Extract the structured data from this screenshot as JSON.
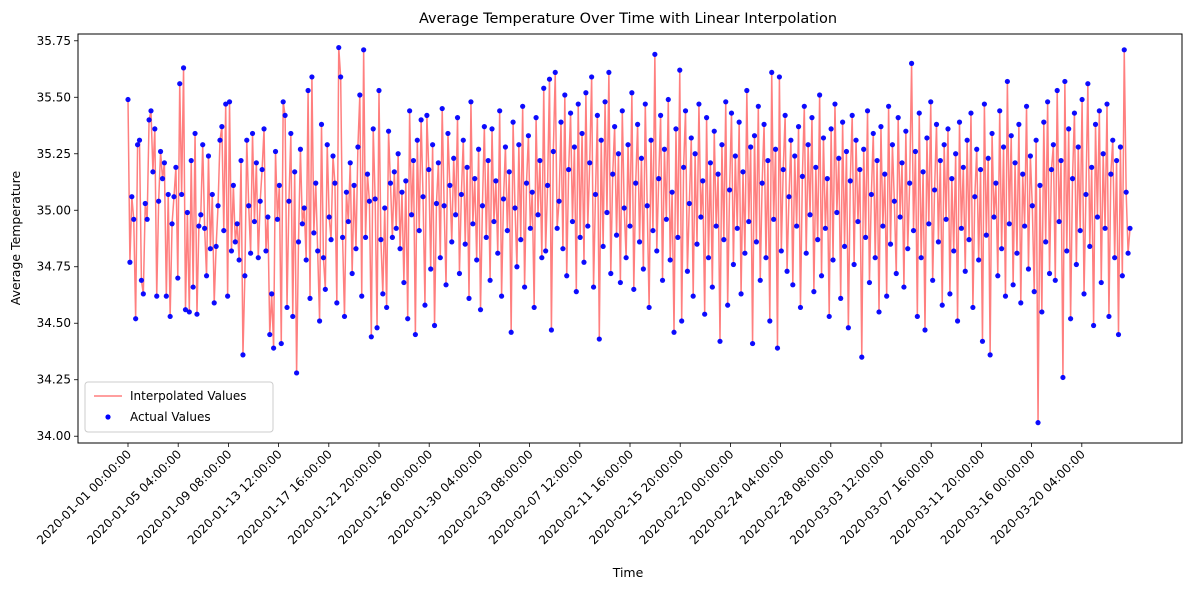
{
  "chart_data": {
    "type": "line",
    "title": "Average Temperature Over Time with Linear Interpolation",
    "xlabel": "Time",
    "ylabel": "Average Temperature",
    "x_range": [
      "2020-01-01 00:00:00",
      "2020-03-24 04:00:00"
    ],
    "sample_interval_hours": 2,
    "ylim": [
      33.97,
      35.78
    ],
    "y_ticks": [
      "34.00",
      "34.25",
      "34.50",
      "34.75",
      "35.00",
      "35.25",
      "35.50",
      "35.75"
    ],
    "x_ticks": [
      "2020-01-01 00:00:00",
      "2020-01-05 04:00:00",
      "2020-01-09 08:00:00",
      "2020-01-13 12:00:00",
      "2020-01-17 16:00:00",
      "2020-01-21 20:00:00",
      "2020-01-26 00:00:00",
      "2020-01-30 04:00:00",
      "2020-02-03 08:00:00",
      "2020-02-07 12:00:00",
      "2020-02-11 16:00:00",
      "2020-02-15 20:00:00",
      "2020-02-20 00:00:00",
      "2020-02-24 04:00:00",
      "2020-02-28 08:00:00",
      "2020-03-03 12:00:00",
      "2020-03-07 16:00:00",
      "2020-03-11 20:00:00",
      "2020-03-16 00:00:00",
      "2020-03-20 04:00:00"
    ],
    "grid": false,
    "legend_position": "lower-left",
    "series": [
      {
        "name": "Interpolated Values",
        "kind": "line",
        "color": "#ff7f7f"
      },
      {
        "name": "Actual Values",
        "kind": "scatter",
        "color": "#0000ff"
      }
    ],
    "values": [
      35.49,
      34.77,
      35.06,
      34.96,
      34.52,
      35.29,
      35.31,
      34.69,
      34.63,
      35.03,
      34.96,
      35.4,
      35.44,
      35.17,
      35.36,
      34.62,
      35.04,
      35.26,
      35.14,
      35.21,
      34.62,
      35.07,
      34.53,
      34.94,
      35.06,
      35.19,
      34.7,
      35.56,
      35.07,
      35.63,
      34.56,
      34.99,
      34.55,
      35.22,
      34.66,
      35.34,
      34.54,
      34.93,
      34.98,
      35.29,
      34.92,
      34.71,
      35.24,
      34.83,
      35.07,
      34.59,
      34.84,
      35.02,
      35.31,
      35.37,
      34.91,
      35.47,
      34.62,
      35.48,
      34.82,
      35.11,
      34.86,
      34.94,
      34.78,
      35.22,
      34.36,
      34.71,
      35.31,
      35.02,
      34.81,
      35.34,
      34.95,
      35.21,
      34.79,
      35.04,
      35.18,
      35.36,
      34.82,
      34.97,
      34.45,
      34.63,
      34.39,
      35.26,
      34.96,
      35.11,
      34.41,
      35.48,
      35.42,
      34.57,
      35.04,
      35.34,
      34.53,
      35.17,
      34.28,
      34.86,
      35.27,
      34.94,
      35.01,
      34.78,
      35.53,
      34.61,
      35.59,
      34.9,
      35.12,
      34.82,
      34.51,
      35.38,
      34.79,
      34.65,
      35.29,
      34.97,
      34.87,
      35.24,
      35.12,
      34.59,
      35.72,
      35.59,
      34.88,
      34.53,
      35.08,
      34.95,
      35.21,
      34.72,
      35.11,
      34.83,
      35.28,
      35.51,
      34.62,
      35.71,
      34.88,
      35.16,
      35.04,
      34.44,
      35.36,
      35.05,
      34.48,
      35.53,
      34.87,
      34.63,
      35.01,
      34.57,
      35.35,
      35.12,
      34.88,
      35.17,
      34.92,
      35.25,
      34.83,
      35.08,
      34.68,
      35.13,
      34.52,
      35.44,
      34.98,
      35.22,
      34.45,
      35.31,
      34.91,
      35.4,
      35.06,
      34.58,
      35.42,
      35.18,
      34.74,
      35.29,
      34.49,
      35.03,
      35.21,
      34.79,
      35.45,
      35.02,
      34.67,
      35.34,
      35.11,
      34.86,
      35.23,
      34.98,
      35.41,
      34.72,
      35.07,
      35.31,
      34.85,
      35.19,
      34.61,
      35.48,
      34.94,
      35.14,
      34.78,
      35.27,
      34.56,
      35.02,
      35.37,
      34.88,
      35.22,
      34.69,
      35.36,
      34.95,
      35.13,
      34.81,
      35.44,
      34.62,
      35.05,
      35.28,
      34.91,
      35.17,
      34.46,
      35.39,
      35.01,
      34.75,
      35.29,
      34.87,
      35.46,
      34.66,
      35.12,
      35.33,
      34.92,
      35.08,
      34.57,
      35.41,
      34.98,
      35.22,
      34.79,
      35.54,
      34.82,
      35.11,
      35.58,
      34.47,
      35.26,
      35.61,
      34.92,
      35.04,
      35.39,
      34.83,
      35.51,
      34.71,
      35.18,
      35.43,
      34.95,
      35.28,
      34.64,
      35.47,
      34.88,
      35.34,
      34.77,
      35.52,
      34.93,
      35.21,
      35.59,
      34.66,
      35.07,
      35.42,
      34.43,
      35.31,
      34.84,
      35.48,
      34.99,
      35.61,
      34.72,
      35.16,
      35.37,
      34.89,
      35.25,
      34.68,
      35.44,
      35.01,
      34.79,
      35.29,
      34.93,
      35.52,
      34.65,
      35.12,
      35.38,
      34.86,
      35.23,
      34.74,
      35.47,
      35.02,
      34.57,
      35.31,
      34.91,
      35.69,
      34.82,
      35.14,
      35.42,
      34.69,
      35.27,
      34.96,
      35.49,
      34.78,
      35.08,
      34.46,
      35.36,
      34.88,
      35.62,
      34.51,
      35.19,
      35.44,
      34.73,
      35.03,
      35.32,
      34.62,
      35.25,
      34.85,
      35.47,
      34.97,
      35.13,
      34.54,
      35.41,
      34.79,
      35.21,
      34.66,
      35.35,
      34.93,
      35.16,
      34.42,
      35.29,
      34.87,
      35.48,
      34.58,
      35.09,
      35.43,
      34.76,
      35.24,
      34.92,
      35.39,
      34.63,
      35.17,
      34.81,
      35.53,
      34.95,
      35.28,
      34.41,
      35.33,
      34.86,
      35.46,
      34.69,
      35.12,
      35.38,
      34.79,
      35.22,
      34.51,
      35.61,
      34.96,
      35.27,
      34.39,
      35.59,
      34.82,
      35.18,
      35.42,
      34.73,
      35.06,
      35.31,
      34.67,
      35.24,
      34.93,
      35.37,
      34.57,
      35.15,
      35.46,
      34.81,
      35.29,
      34.98,
      35.41,
      34.64,
      35.19,
      34.87,
      35.51,
      34.71,
      35.32,
      34.92,
      35.14,
      34.53,
      35.36,
      34.78,
      35.47,
      34.99,
      35.23,
      34.61,
      35.39,
      34.84,
      35.26,
      34.48,
      35.13,
      35.42,
      34.76,
      35.31,
      34.95,
      35.18,
      34.35,
      35.27,
      34.88,
      35.44,
      34.68,
      35.07,
      35.34,
      34.79,
      35.22,
      34.55,
      35.37,
      34.93,
      35.16,
      34.62,
      35.46,
      34.85,
      35.29,
      35.04,
      34.72,
      35.41,
      34.97,
      35.21,
      34.66,
      35.35,
      34.83,
      35.12,
      35.65,
      34.91,
      35.26,
      34.53,
      35.43,
      34.79,
      35.17,
      34.47,
      35.32,
      34.94,
      35.48,
      34.69,
      35.09,
      35.38,
      34.86,
      35.22,
      34.58,
      35.29,
      34.96,
      35.36,
      34.63,
      35.14,
      34.82,
      35.25,
      34.51,
      35.39,
      34.92,
      35.19,
      34.73,
      35.31,
      34.87,
      35.43,
      34.57,
      35.06,
      35.27,
      34.78,
      35.18,
      34.42,
      35.47,
      34.89,
      35.23,
      34.36,
      35.34,
      34.97,
      35.12,
      34.71,
      35.44,
      34.83,
      35.28,
      34.62,
      35.57,
      34.94,
      35.33,
      34.67,
      35.21,
      34.81,
      35.38,
      34.59,
      35.16,
      34.93,
      35.46,
      34.74,
      35.24,
      35.02,
      34.64,
      35.31,
      34.06,
      35.11,
      34.55,
      35.39,
      34.86,
      35.48,
      34.72,
      35.18,
      35.29,
      34.69,
      35.53,
      34.95,
      35.22,
      34.26,
      35.57,
      34.82,
      35.36,
      34.52,
      35.14,
      35.43,
      34.76,
      35.28,
      34.91,
      35.49,
      34.63,
      35.07,
      35.56,
      34.84,
      35.19,
      34.49,
      35.38,
      34.97,
      35.44,
      34.68,
      35.25,
      34.92,
      35.47,
      34.53,
      35.16,
      35.31,
      34.79,
      35.22,
      34.45,
      35.28,
      34.71,
      35.71,
      35.08,
      34.81,
      34.92
    ]
  }
}
